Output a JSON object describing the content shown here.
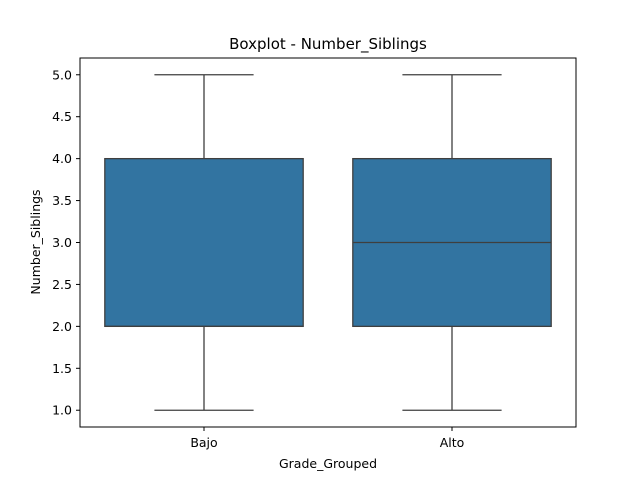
{
  "chart_data": {
    "type": "boxplot",
    "title": "Boxplot - Number_Siblings",
    "xlabel": "Grade_Grouped",
    "ylabel": "Number_Siblings",
    "categories": [
      "Bajo",
      "Alto"
    ],
    "boxes": [
      {
        "category": "Bajo",
        "whisker_low": 1.0,
        "q1": 2.0,
        "median": 2.0,
        "q3": 4.0,
        "whisker_high": 5.0
      },
      {
        "category": "Alto",
        "whisker_low": 1.0,
        "q1": 2.0,
        "median": 3.0,
        "q3": 4.0,
        "whisker_high": 5.0
      }
    ],
    "ylim": [
      0.8,
      5.2
    ],
    "yticks": [
      1.0,
      1.5,
      2.0,
      2.5,
      3.0,
      3.5,
      4.0,
      4.5,
      5.0
    ],
    "ytick_labels": [
      "1.0",
      "1.5",
      "2.0",
      "2.5",
      "3.0",
      "3.5",
      "4.0",
      "4.5",
      "5.0"
    ],
    "grid": false,
    "colors": {
      "box_fill": "#3274a1",
      "line": "#3f3f3f",
      "axes": "#000000"
    }
  }
}
